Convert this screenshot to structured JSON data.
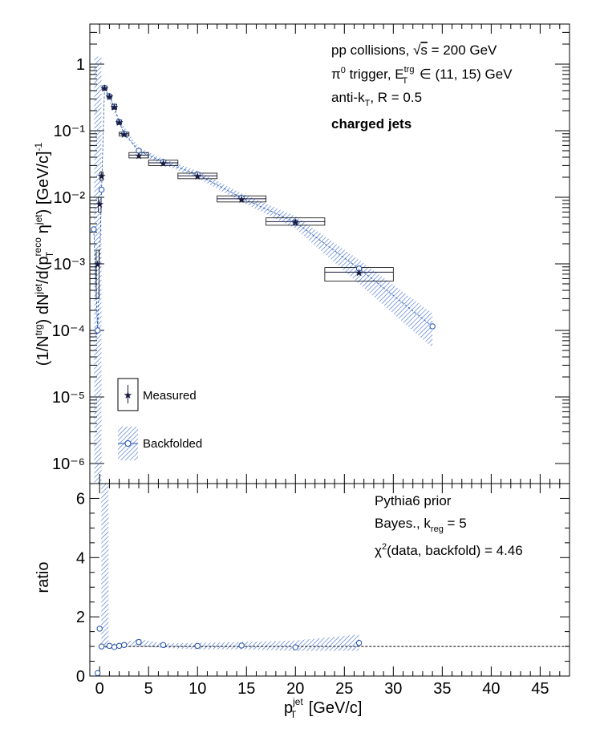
{
  "colors": {
    "measured": "#1a1a40",
    "backfold": "#1f4fa8",
    "band": "#3a6ad0",
    "frame": "#000000",
    "ref_line": "#000000"
  },
  "top_panel": {
    "ylabel": "(1/N^{trg}) dN^{jet}/d(p_{T}^{reco} η^{jet}) [GeV/c]^{-1}",
    "annotations": [
      "pp collisions, √s = 200 GeV",
      "π⁰ trigger, E_T^trg ∈ (11, 15) GeV",
      "anti-k_T, R = 0.5",
      "charged jets"
    ],
    "legend": [
      {
        "label": "Measured",
        "marker": "star-with-box"
      },
      {
        "label": "Backfolded",
        "marker": "circle-with-band"
      }
    ]
  },
  "bottom_panel": {
    "ylabel": "ratio",
    "annotations": [
      "Pythia6 prior",
      "Bayes., k_reg = 5",
      "χ²(data, backfold) = 4.46"
    ]
  },
  "chart_data": [
    {
      "type": "scatter",
      "panel": "top",
      "xlim": [
        -1,
        48
      ],
      "ylim": [
        5e-07,
        4
      ],
      "log_y": true,
      "ytick_labels": [
        "10⁻⁶",
        "10⁻⁵",
        "10⁻⁴",
        "10⁻³",
        "10⁻²",
        "10⁻¹",
        "1"
      ],
      "series": [
        {
          "name": "Measured",
          "points": [
            {
              "x": -0.2,
              "y": 0.001,
              "xerr": 0.15,
              "syst_lo": 0.0003,
              "syst_hi": 0.0016
            },
            {
              "x": 0.0,
              "y": 0.008,
              "xerr": 0.15,
              "syst_lo": 0.006,
              "syst_hi": 0.01
            },
            {
              "x": 0.2,
              "y": 0.021,
              "xerr": 0.15,
              "syst_lo": 0.018,
              "syst_hi": 0.024
            },
            {
              "x": 0.5,
              "y": 0.44,
              "xerr": 0.25,
              "syst_lo": 0.41,
              "syst_hi": 0.47
            },
            {
              "x": 1.0,
              "y": 0.33,
              "xerr": 0.25,
              "syst_lo": 0.31,
              "syst_hi": 0.35
            },
            {
              "x": 1.5,
              "y": 0.23,
              "xerr": 0.25,
              "syst_lo": 0.21,
              "syst_hi": 0.25
            },
            {
              "x": 2.0,
              "y": 0.135,
              "xerr": 0.25,
              "syst_lo": 0.125,
              "syst_hi": 0.145
            },
            {
              "x": 2.5,
              "y": 0.09,
              "xerr": 0.5,
              "syst_lo": 0.083,
              "syst_hi": 0.095
            },
            {
              "x": 4.0,
              "y": 0.043,
              "xerr": 1.0,
              "syst_lo": 0.039,
              "syst_hi": 0.047
            },
            {
              "x": 6.5,
              "y": 0.033,
              "xerr": 1.5,
              "syst_lo": 0.03,
              "syst_hi": 0.036
            },
            {
              "x": 10.0,
              "y": 0.021,
              "xerr": 2.0,
              "syst_lo": 0.019,
              "syst_hi": 0.023
            },
            {
              "x": 14.5,
              "y": 0.0095,
              "xerr": 2.5,
              "syst_lo": 0.0085,
              "syst_hi": 0.0105
            },
            {
              "x": 20.0,
              "y": 0.0043,
              "xerr": 3.0,
              "syst_lo": 0.0038,
              "syst_hi": 0.0049
            },
            {
              "x": 26.5,
              "y": 0.00075,
              "xerr": 3.5,
              "syst_lo": 0.00055,
              "syst_hi": 0.00088
            }
          ]
        },
        {
          "name": "Backfolded",
          "points": [
            {
              "x": -0.6,
              "y": 0.0033
            },
            {
              "x": -0.2,
              "y": 0.0001
            },
            {
              "x": 0.2,
              "y": 0.013
            },
            {
              "x": 0.5,
              "y": 0.44
            },
            {
              "x": 1.0,
              "y": 0.33
            },
            {
              "x": 1.5,
              "y": 0.23
            },
            {
              "x": 2.0,
              "y": 0.135
            },
            {
              "x": 2.5,
              "y": 0.09
            },
            {
              "x": 4.0,
              "y": 0.05
            },
            {
              "x": 6.5,
              "y": 0.034
            },
            {
              "x": 10.0,
              "y": 0.022
            },
            {
              "x": 14.5,
              "y": 0.0098
            },
            {
              "x": 20.0,
              "y": 0.0042
            },
            {
              "x": 26.5,
              "y": 0.00085
            },
            {
              "x": 34.0,
              "y": 0.000115
            }
          ],
          "band": [
            {
              "x": 0.5,
              "lo": 0.4,
              "hi": 0.48
            },
            {
              "x": 2.0,
              "lo": 0.125,
              "hi": 0.145
            },
            {
              "x": 4.0,
              "lo": 0.045,
              "hi": 0.056
            },
            {
              "x": 6.5,
              "lo": 0.031,
              "hi": 0.038
            },
            {
              "x": 10.0,
              "lo": 0.0195,
              "hi": 0.025
            },
            {
              "x": 14.5,
              "lo": 0.0085,
              "hi": 0.0115
            },
            {
              "x": 20.0,
              "lo": 0.0034,
              "hi": 0.0052
            },
            {
              "x": 26.5,
              "lo": 0.0005,
              "hi": 0.00115
            },
            {
              "x": 34.0,
              "lo": 5.5e-05,
              "hi": 0.00018
            }
          ]
        }
      ]
    },
    {
      "type": "scatter",
      "panel": "bottom",
      "xlim": [
        -1,
        48
      ],
      "ylim": [
        0,
        6.5
      ],
      "xlabel": "p_T^jet [GeV/c]",
      "ylabel": "ratio",
      "reference_line": 1,
      "xticks": [
        0,
        5,
        10,
        15,
        20,
        25,
        30,
        35,
        40,
        45
      ],
      "yticks": [
        0,
        2,
        4,
        6
      ],
      "points": [
        {
          "x": -0.2,
          "y": 0.1
        },
        {
          "x": 0.0,
          "y": 1.6
        },
        {
          "x": 0.2,
          "y": 1.0
        },
        {
          "x": 1.0,
          "y": 1.02
        },
        {
          "x": 1.5,
          "y": 0.98
        },
        {
          "x": 2.0,
          "y": 1.02
        },
        {
          "x": 2.5,
          "y": 1.05
        },
        {
          "x": 4.0,
          "y": 1.15
        },
        {
          "x": 6.5,
          "y": 1.05
        },
        {
          "x": 10.0,
          "y": 1.02
        },
        {
          "x": 14.5,
          "y": 1.03
        },
        {
          "x": 20.0,
          "y": 0.97
        },
        {
          "x": 26.5,
          "y": 1.12
        }
      ],
      "band": [
        {
          "x": 0.5,
          "lo": 0.95,
          "hi": 1.1
        },
        {
          "x": 2.0,
          "lo": 0.95,
          "hi": 1.1
        },
        {
          "x": 4.0,
          "lo": 1.0,
          "hi": 1.25
        },
        {
          "x": 6.5,
          "lo": 0.95,
          "hi": 1.1
        },
        {
          "x": 10.0,
          "lo": 0.9,
          "hi": 1.12
        },
        {
          "x": 14.5,
          "lo": 0.9,
          "hi": 1.15
        },
        {
          "x": 20.0,
          "lo": 0.85,
          "hi": 1.2
        },
        {
          "x": 26.5,
          "lo": 0.85,
          "hi": 1.4
        }
      ],
      "spike_band": {
        "x": 0.5,
        "lo": 1.0,
        "hi": 6.5
      }
    }
  ]
}
